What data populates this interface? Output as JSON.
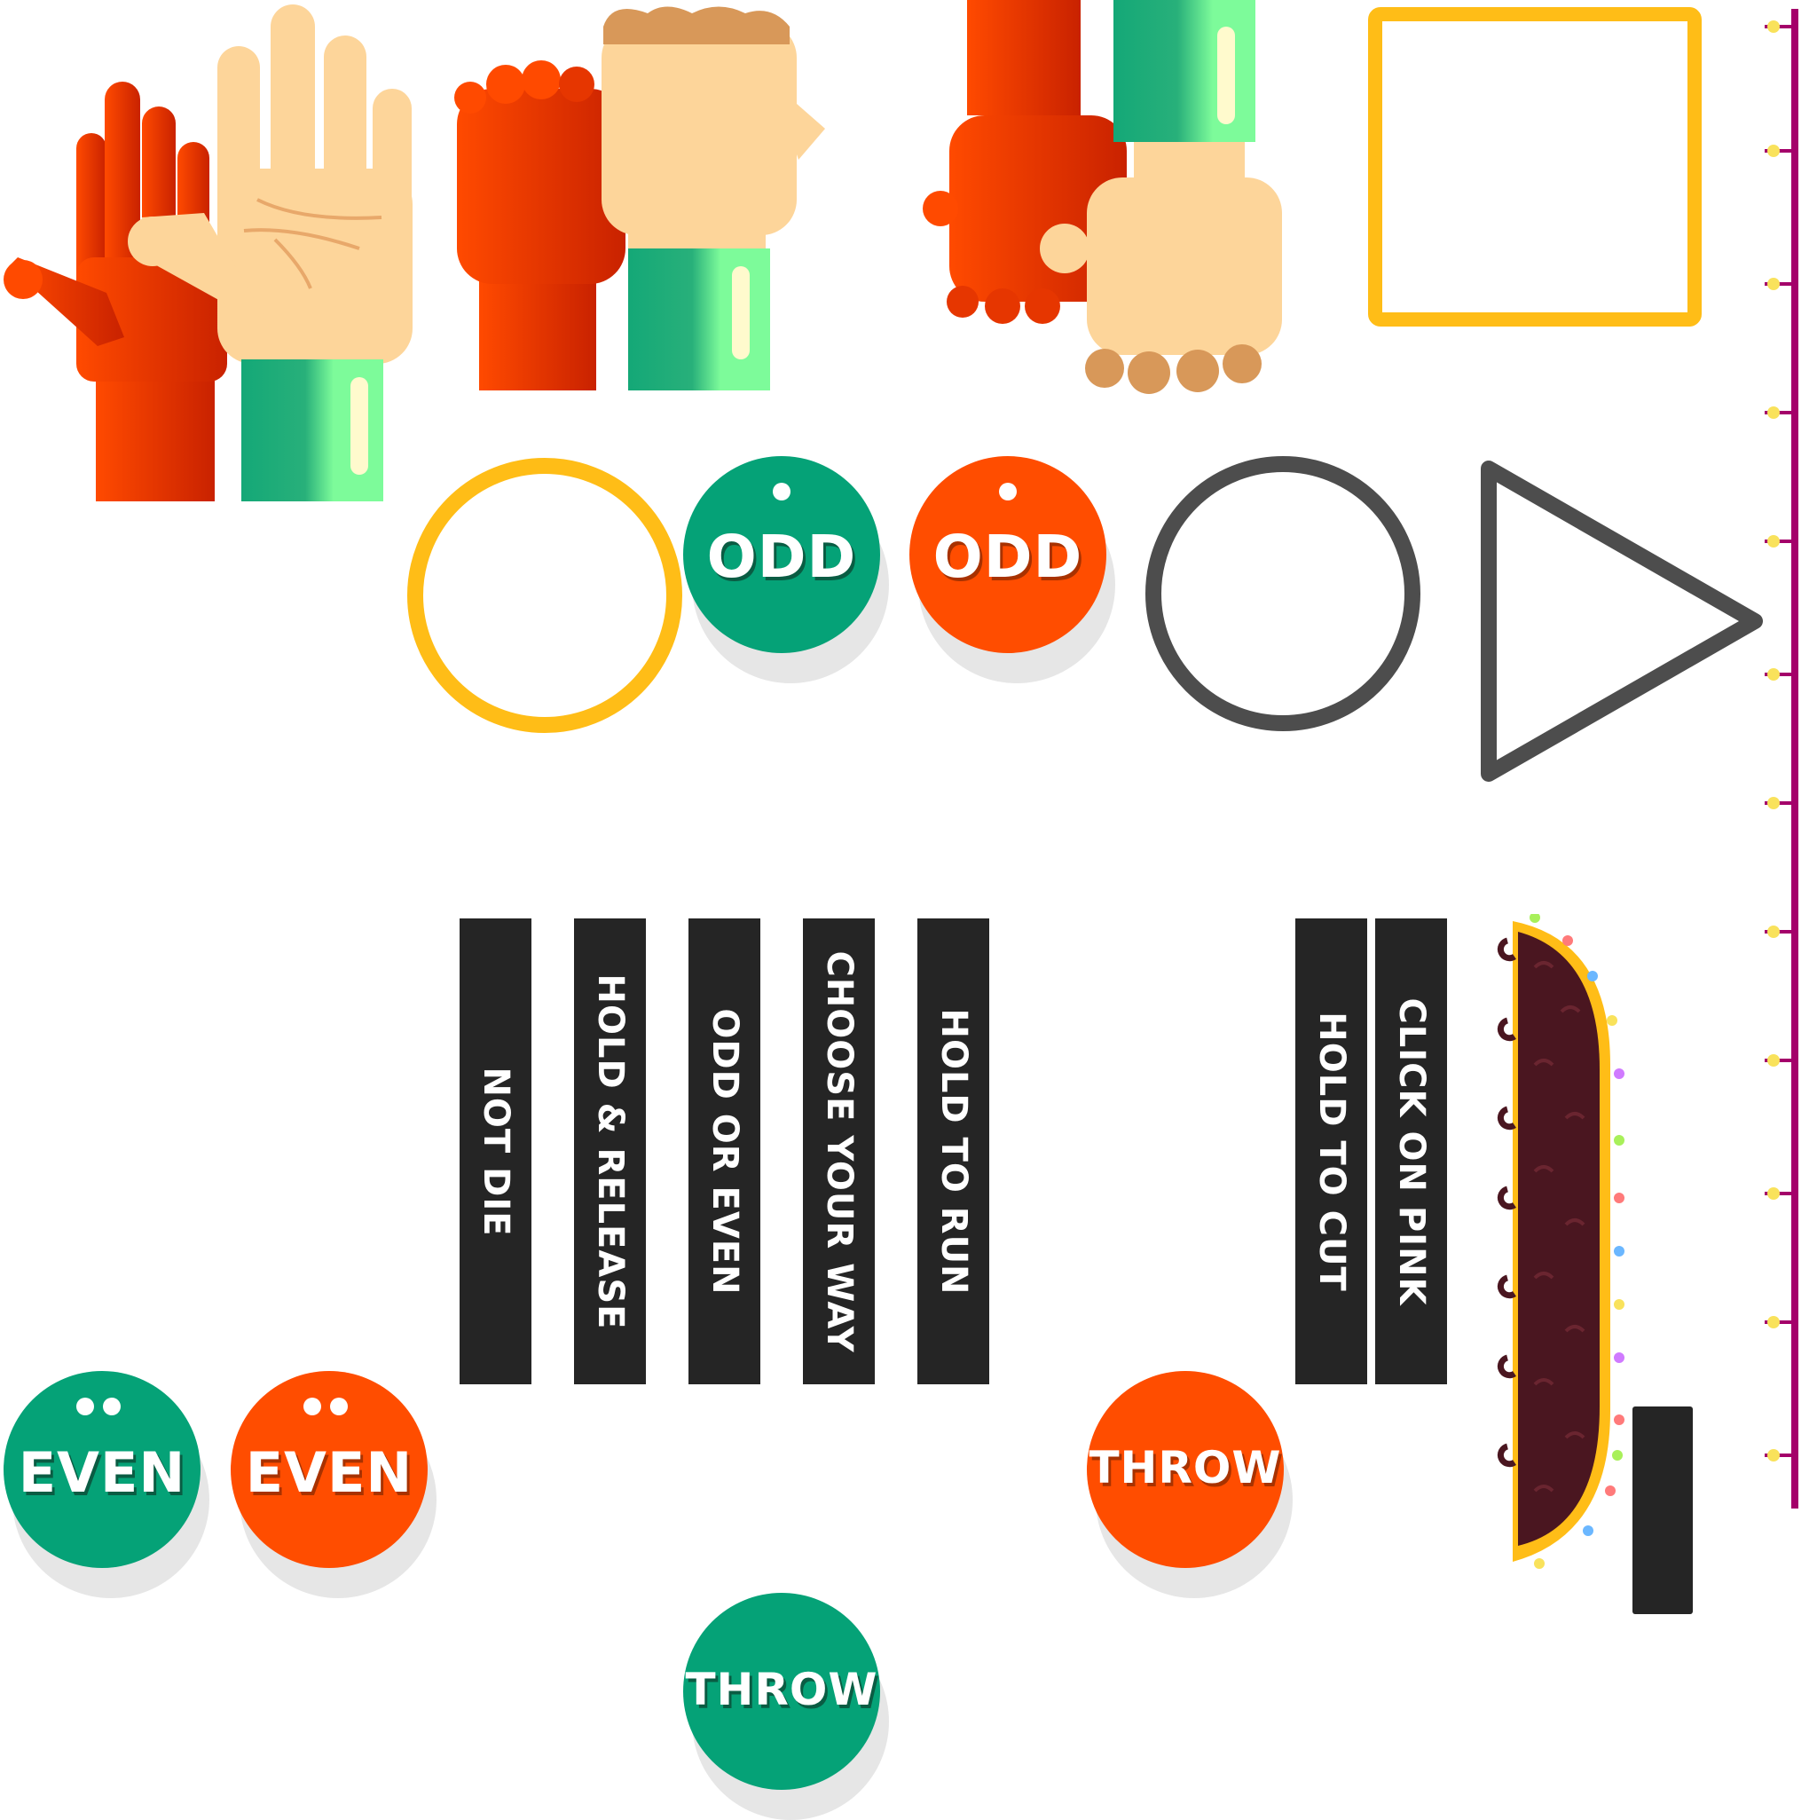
{
  "buttons": {
    "odd_green": {
      "label": "ODD",
      "color": "#05a277",
      "shadow_text": "#0a5c43"
    },
    "odd_orange": {
      "label": "ODD",
      "color": "#ff4d00",
      "shadow_text": "#a83200"
    },
    "even_green": {
      "label": "EVEN",
      "color": "#05a277",
      "shadow_text": "#0a5c43"
    },
    "even_orange": {
      "label": "EVEN",
      "color": "#ff4d00",
      "shadow_text": "#a83200"
    },
    "throw_orange": {
      "label": "THROW",
      "color": "#ff4d00",
      "shadow_text": "#a83200"
    },
    "throw_green": {
      "label": "THROW",
      "color": "#05a277",
      "shadow_text": "#0a5c43"
    }
  },
  "strips": {
    "not_die": "NOT DIE",
    "hold_release": "HOLD & RELEASE",
    "odd_or_even": "ODD OR EVEN",
    "choose_your_way": "CHOOSE YOUR WAY",
    "hold_to_run": "HOLD TO RUN",
    "hold_to_cut": "HOLD TO CUT",
    "click_on_pink": "CLICK ON PINK"
  },
  "shapes": {
    "square_color": "#ffbd17",
    "circle_yellow_color": "#ffbd17",
    "circle_gray_color": "#4d4d4d",
    "triangle_color": "#4d4d4d",
    "rope_color": "#a4006a"
  },
  "icons": [
    "open-hand-icon",
    "fist-icon",
    "thumbs-hand-icon",
    "bead-rope-icon",
    "taco-board-icon"
  ]
}
